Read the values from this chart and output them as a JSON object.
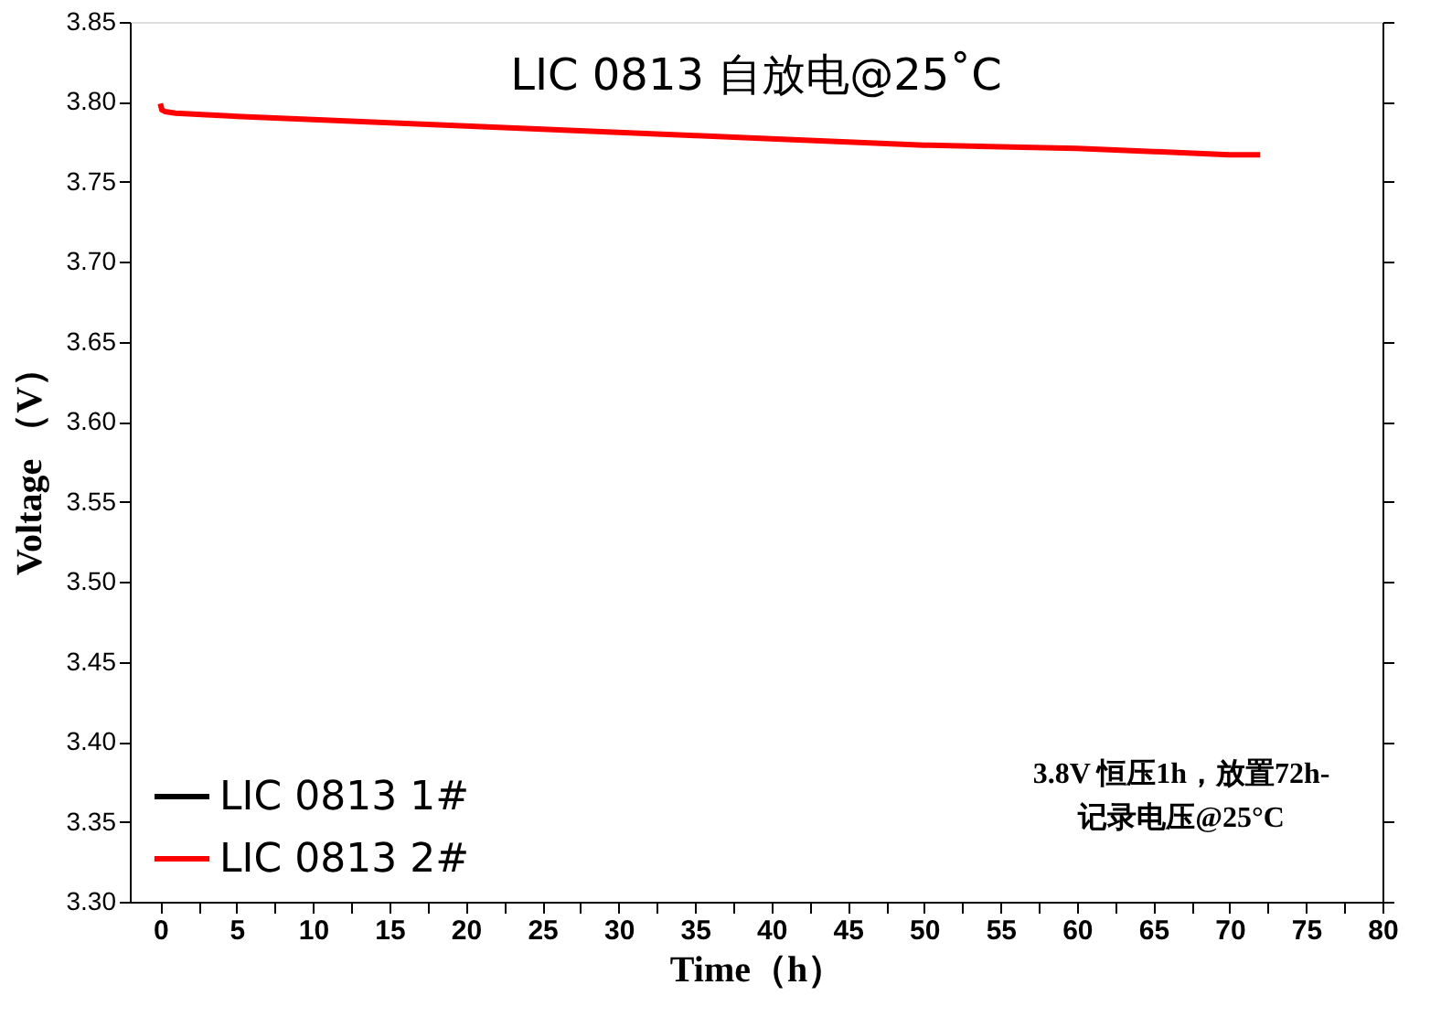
{
  "chart_data": {
    "type": "line",
    "title": "LIC 0813 自放电@25˚C",
    "xlabel": "Time（h）",
    "ylabel": "Voltage （V）",
    "x": [
      0,
      0.1,
      0.3,
      1,
      3,
      5,
      10,
      15,
      20,
      25,
      30,
      35,
      40,
      45,
      50,
      55,
      60,
      65,
      70,
      72
    ],
    "series": [
      {
        "name": "LIC 0813 1#",
        "color": "#000000",
        "values": [
          null,
          null,
          null,
          null,
          null,
          null,
          null,
          null,
          null,
          null,
          null,
          null,
          null,
          null,
          null,
          null,
          null,
          null,
          null,
          null
        ]
      },
      {
        "name": "LIC 0813 2#",
        "color": "#ff0000",
        "values": [
          3.799,
          3.795,
          3.794,
          3.793,
          3.792,
          3.791,
          3.789,
          3.787,
          3.785,
          3.783,
          3.781,
          3.779,
          3.777,
          3.775,
          3.773,
          3.772,
          3.771,
          3.769,
          3.767,
          3.767
        ]
      }
    ],
    "xlim": [
      -2,
      80
    ],
    "xticks": [
      0,
      {
        "value": 2.5,
        "label": null
      },
      5,
      {
        "value": 7.5,
        "label": null
      },
      10,
      {
        "value": 12.5,
        "label": null
      },
      15,
      {
        "value": 17.5,
        "label": null
      },
      20,
      {
        "value": 22.5,
        "label": null
      },
      25,
      {
        "value": 27.5,
        "label": null
      },
      30,
      {
        "value": 32.5,
        "label": null
      },
      35,
      {
        "value": 37.5,
        "label": null
      },
      40,
      {
        "value": 42.5,
        "label": null
      },
      45,
      {
        "value": 47.5,
        "label": null
      },
      50,
      {
        "value": 52.5,
        "label": null
      },
      55,
      {
        "value": 57.5,
        "label": null
      },
      60,
      {
        "value": 62.5,
        "label": null
      },
      65,
      {
        "value": 67.5,
        "label": null
      },
      70,
      {
        "value": 72.5,
        "label": null
      },
      75,
      {
        "value": 77.5,
        "label": null
      },
      80
    ],
    "ylim": [
      3.3,
      3.85
    ],
    "yticks": [
      {
        "value": 3.3,
        "label": "3.30"
      },
      3.35,
      {
        "value": 3.4,
        "label": "3.40"
      },
      3.45,
      {
        "value": 3.5,
        "label": "3.50"
      },
      3.55,
      {
        "value": 3.6,
        "label": "3.60"
      },
      3.65,
      {
        "value": 3.7,
        "label": "3.70"
      },
      3.75,
      {
        "value": 3.8,
        "label": "3.80"
      },
      3.85
    ],
    "annotations": [
      "3.8V 恒压1h，放置72h-\n记录电压@25°C"
    ],
    "legend": "bottom left",
    "grid": false,
    "marker": "none",
    "line_style": "solid"
  }
}
